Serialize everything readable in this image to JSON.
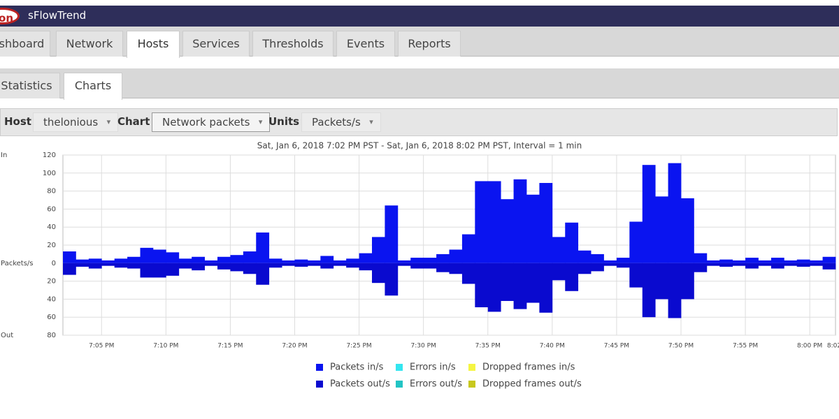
{
  "header": {
    "logo": "on",
    "app_name": "sFlowTrend"
  },
  "tabs": [
    "shboard",
    "Network",
    "Hosts",
    "Services",
    "Thresholds",
    "Events",
    "Reports"
  ],
  "subtabs": [
    "Statistics",
    "Charts"
  ],
  "toolbar": {
    "host_label": "Host",
    "host_value": "thelonious",
    "chart_label": "Chart",
    "chart_value": "Network packets",
    "units_label": "Units",
    "units_value": "Packets/s"
  },
  "chart_data": {
    "type": "bar",
    "subtitle": "Sat, Jan 6, 2018 7:02 PM PST - Sat, Jan 6, 2018 8:02 PM PST, Interval = 1 min",
    "y_label_top": "In",
    "ylabel": "Packets/s",
    "y_label_bottom": "Out",
    "categories": [
      null,
      null,
      null,
      "7:05 PM",
      null,
      null,
      null,
      null,
      "7:10 PM",
      null,
      null,
      null,
      null,
      "7:15 PM",
      null,
      null,
      null,
      null,
      "7:20 PM",
      null,
      null,
      null,
      null,
      "7:25 PM",
      null,
      null,
      null,
      null,
      "7:30 PM",
      null,
      null,
      null,
      null,
      "7:35 PM",
      null,
      null,
      null,
      null,
      "7:40 PM",
      null,
      null,
      null,
      null,
      "7:45 PM",
      null,
      null,
      null,
      null,
      "7:50 PM",
      null,
      null,
      null,
      null,
      "7:55 PM",
      null,
      null,
      null,
      null,
      "8:00 PM",
      null
    ],
    "x_end_label": "8:02",
    "series": [
      {
        "name": "Packets in/s",
        "color": "#0a14f0",
        "values": [
          13,
          4,
          5,
          3,
          5,
          7,
          17,
          15,
          12,
          5,
          7,
          3,
          7,
          9,
          13,
          34,
          5,
          3,
          4,
          3,
          8,
          3,
          5,
          11,
          29,
          64,
          3,
          6,
          6,
          10,
          15,
          32,
          91,
          91,
          71,
          93,
          76,
          89,
          29,
          45,
          14,
          10,
          3,
          6,
          46,
          109,
          74,
          111,
          72,
          11,
          3,
          4,
          3,
          6,
          3,
          6,
          3,
          4,
          3,
          7
        ]
      },
      {
        "name": "Errors in/s",
        "color": "#33e6f0"
      },
      {
        "name": "Dropped frames in/s",
        "color": "#f5f542"
      },
      {
        "name": "Packets out/s",
        "color": "#0a0acf",
        "values": [
          -13,
          -4,
          -6,
          -3,
          -5,
          -6,
          -16,
          -16,
          -14,
          -6,
          -8,
          -3,
          -7,
          -9,
          -12,
          -24,
          -5,
          -3,
          -4,
          -3,
          -6,
          -3,
          -5,
          -8,
          -22,
          -36,
          -3,
          -6,
          -6,
          -10,
          -12,
          -23,
          -49,
          -54,
          -42,
          -51,
          -44,
          -55,
          -19,
          -31,
          -12,
          -9,
          -3,
          -5,
          -27,
          -60,
          -40,
          -61,
          -40,
          -10,
          -3,
          -4,
          -3,
          -6,
          -3,
          -6,
          -3,
          -4,
          -3,
          -7
        ]
      },
      {
        "name": "Errors out/s",
        "color": "#22c4c4"
      },
      {
        "name": "Dropped frames out/s",
        "color": "#c8c81e"
      }
    ],
    "ylim": [
      -80,
      120
    ],
    "yticks": [
      120,
      100,
      80,
      60,
      40,
      20,
      0,
      {
        "value": -20,
        "label": "20"
      },
      {
        "value": -40,
        "label": "40"
      },
      {
        "value": -60,
        "label": "60"
      },
      {
        "value": -80,
        "label": "80"
      }
    ],
    "grid": true,
    "legend": "bottom"
  }
}
